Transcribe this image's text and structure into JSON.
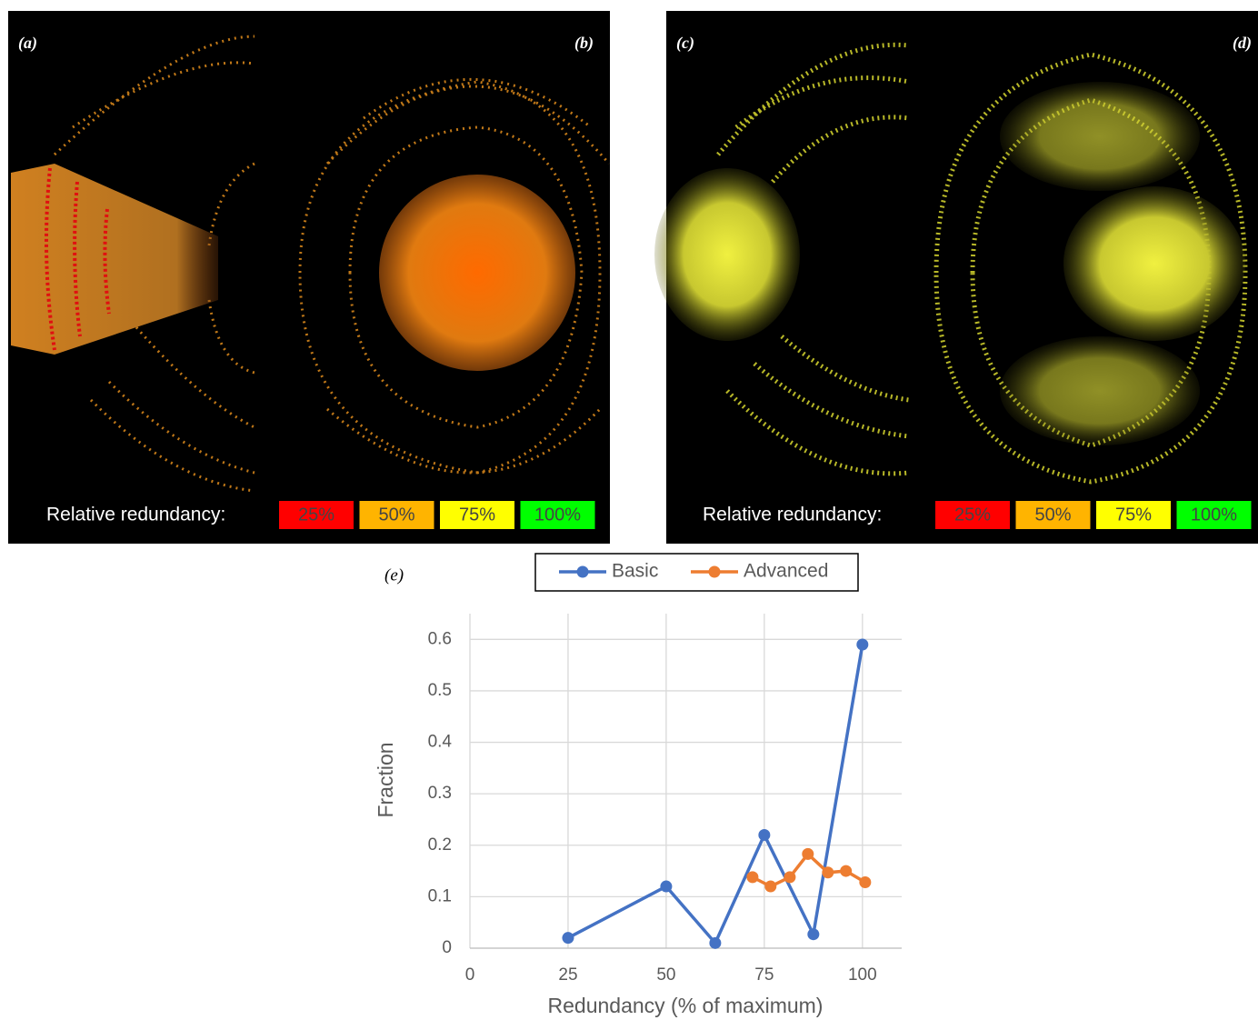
{
  "panels": [
    {
      "labels": [
        "(a)",
        "(b)"
      ],
      "legend_title": "Relative redundancy:",
      "legend": [
        {
          "label": "25%",
          "color": "#ff0000"
        },
        {
          "label": "50%",
          "color": "#ffb400"
        },
        {
          "label": "75%",
          "color": "#ffff00"
        },
        {
          "label": "100%",
          "color": "#00ff00"
        }
      ]
    },
    {
      "labels": [
        "(c)",
        "(d)"
      ],
      "legend_title": "Relative redundancy:",
      "legend": [
        {
          "label": "25%",
          "color": "#ff0000"
        },
        {
          "label": "50%",
          "color": "#ffb400"
        },
        {
          "label": "75%",
          "color": "#ffff00"
        },
        {
          "label": "100%",
          "color": "#00ff00"
        }
      ]
    }
  ],
  "chart_data": {
    "type": "line",
    "panel_label": "(e)",
    "x_label": "Redundancy (% of maximum)",
    "y_label": "Fraction",
    "xlim": [
      0,
      110
    ],
    "ylim": [
      0,
      0.65
    ],
    "xticks": [
      0,
      25,
      50,
      75,
      100
    ],
    "yticks": [
      0,
      0.1,
      0.2,
      0.3,
      0.4,
      0.5,
      0.6
    ],
    "grid": true,
    "series": [
      {
        "name": "Basic",
        "color": "#4472c4",
        "x": [
          25,
          50,
          62.5,
          75,
          87.5,
          100
        ],
        "values": [
          0.02,
          0.12,
          0.01,
          0.22,
          0.027,
          0.59
        ]
      },
      {
        "name": "Advanced",
        "color": "#ed7d31",
        "x": [
          72,
          76.6,
          81.5,
          86.1,
          91.2,
          95.8,
          100.7
        ],
        "values": [
          0.138,
          0.12,
          0.138,
          0.183,
          0.147,
          0.15,
          0.128
        ]
      }
    ]
  }
}
